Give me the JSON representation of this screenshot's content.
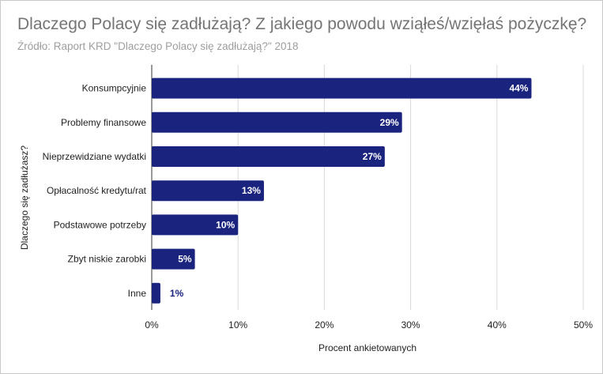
{
  "header": {
    "title": "Dlaczego Polacy się zadłużają? Z jakiego powodu wziąłeś/wzięłaś pożyczkę?",
    "subtitle": "Źródło: Raport KRD \"Dlaczego Polacy się zadłużają?\" 2018"
  },
  "chart_data": {
    "type": "bar",
    "orientation": "horizontal",
    "title": "Dlaczego Polacy się zadłużają? Z jakiego powodu wziąłeś/wzięłaś pożyczkę?",
    "subtitle": "Źródło: Raport KRD \"Dlaczego Polacy się zadłużają?\" 2018",
    "categories": [
      "Konsumpcyjnie",
      "Problemy finansowe",
      "Nieprzewidziane wydatki",
      "Opłacalność kredytu/rat",
      "Podstawowe potrzeby",
      "Zbyt niskie zarobki",
      "Inne"
    ],
    "values": [
      44,
      29,
      27,
      13,
      10,
      5,
      1
    ],
    "data_labels": [
      "44%",
      "29%",
      "27%",
      "13%",
      "10%",
      "5%",
      "1%"
    ],
    "xlabel": "Procent ankietowanych",
    "ylabel": "Dlaczego się zadłużasz?",
    "xlim": [
      0,
      50
    ],
    "x_ticks": [
      0,
      10,
      20,
      30,
      40,
      50
    ],
    "x_tick_labels": [
      "0%",
      "10%",
      "20%",
      "30%",
      "40%",
      "50%"
    ],
    "grid": true,
    "legend": "none",
    "colors": {
      "bar": "#1a237e",
      "label_inside": "#ffffff",
      "label_outside": "#1a237e",
      "grid": "#d9d9d9"
    }
  }
}
